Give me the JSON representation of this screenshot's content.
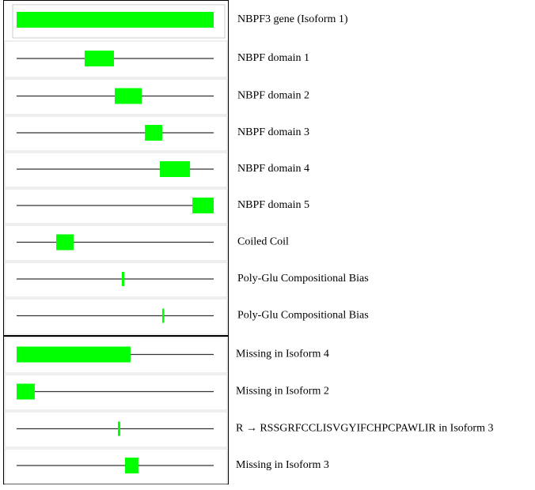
{
  "rows": [
    {
      "label": "NBPF3 gene (Isoform 1)",
      "start": 0,
      "end": 100
    },
    {
      "label": "NBPF domain 1",
      "start": 34.5,
      "end": 49.4
    },
    {
      "label": "NBPF domain 2",
      "start": 49.8,
      "end": 63.5
    },
    {
      "label": "NBPF domain 3",
      "start": 65.1,
      "end": 73.9
    },
    {
      "label": "NBPF domain 4",
      "start": 72.7,
      "end": 88.0
    },
    {
      "label": "NBPF domain 5",
      "start": 89.2,
      "end": 100
    },
    {
      "label": "Coiled Coil",
      "start": 20.1,
      "end": 28.9
    },
    {
      "label": "Poly-Glu Compositional Bias",
      "start": 53.4,
      "end": 54.6
    },
    {
      "label": "Poly-Glu Compositional Bias",
      "start": 73.9,
      "end": 74.7
    },
    {
      "label": "Missing in Isoform 4",
      "start": 0,
      "end": 57.8
    },
    {
      "label": "Missing in Isoform 2",
      "start": 0,
      "end": 9.2
    },
    {
      "label": "R → RSSGRFCCLISVGYIFCHPCPAWLIR in Isoform 3",
      "start": 51.4,
      "end": 52.6
    },
    {
      "label": "Missing in Isoform 3",
      "start": 55.0,
      "end": 61.8
    }
  ]
}
